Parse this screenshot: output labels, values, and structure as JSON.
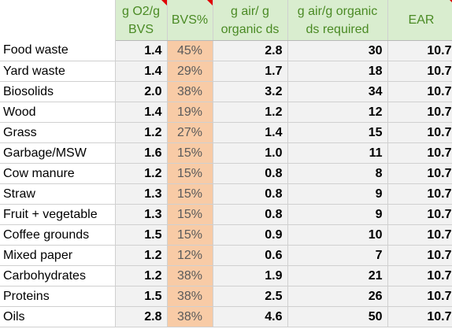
{
  "colors": {
    "header_bg": "#d9edcf",
    "header_text": "#4a8a24",
    "bvs_bg": "#f8cba6",
    "value_bg": "#f2f2f2",
    "comment_marker": "#e00000"
  },
  "headers": [
    {
      "line1": "",
      "line2": "",
      "comment": false
    },
    {
      "line1": "g O2/g",
      "line2": "BVS",
      "comment": true
    },
    {
      "line1": "BVS%",
      "line2": "",
      "comment": true
    },
    {
      "line1": "g air/ g",
      "line2": "organic ds",
      "comment": false
    },
    {
      "line1": "g air/g organic",
      "line2": "ds required",
      "comment": false
    },
    {
      "line1": "EAR",
      "line2": "",
      "comment": true
    }
  ],
  "rows": [
    {
      "name": "Food waste",
      "o2": "1.4",
      "bvs": "45%",
      "air": "2.8",
      "req": "30",
      "ear": "10.7"
    },
    {
      "name": "Yard waste",
      "o2": "1.4",
      "bvs": "29%",
      "air": "1.7",
      "req": "18",
      "ear": "10.7"
    },
    {
      "name": "Biosolids",
      "o2": "2.0",
      "bvs": "38%",
      "air": "3.2",
      "req": "34",
      "ear": "10.7"
    },
    {
      "name": "Wood",
      "o2": "1.4",
      "bvs": "19%",
      "air": "1.2",
      "req": "12",
      "ear": "10.7"
    },
    {
      "name": "Grass",
      "o2": "1.2",
      "bvs": "27%",
      "air": "1.4",
      "req": "15",
      "ear": "10.7"
    },
    {
      "name": "Garbage/MSW",
      "o2": "1.6",
      "bvs": "15%",
      "air": "1.0",
      "req": "11",
      "ear": "10.7"
    },
    {
      "name": "Cow manure",
      "o2": "1.2",
      "bvs": "15%",
      "air": "0.8",
      "req": "8",
      "ear": "10.7"
    },
    {
      "name": "Straw",
      "o2": "1.3",
      "bvs": "15%",
      "air": "0.8",
      "req": "9",
      "ear": "10.7"
    },
    {
      "name": "Fruit + vegetable",
      "o2": "1.3",
      "bvs": "15%",
      "air": "0.8",
      "req": "9",
      "ear": "10.7"
    },
    {
      "name": "Coffee grounds",
      "o2": "1.5",
      "bvs": "15%",
      "air": "0.9",
      "req": "10",
      "ear": "10.7"
    },
    {
      "name": "Mixed paper",
      "o2": "1.2",
      "bvs": "12%",
      "air": "0.6",
      "req": "7",
      "ear": "10.7"
    },
    {
      "name": "Carbohydrates",
      "o2": "1.2",
      "bvs": "38%",
      "air": "1.9",
      "req": "21",
      "ear": "10.7"
    },
    {
      "name": "Proteins",
      "o2": "1.5",
      "bvs": "38%",
      "air": "2.5",
      "req": "26",
      "ear": "10.7"
    },
    {
      "name": "Oils",
      "o2": "2.8",
      "bvs": "38%",
      "air": "4.6",
      "req": "50",
      "ear": "10.7"
    }
  ]
}
